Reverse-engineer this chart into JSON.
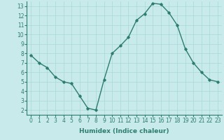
{
  "x_values": [
    0,
    1,
    2,
    3,
    4,
    5,
    6,
    7,
    8,
    9,
    10,
    11,
    12,
    13,
    14,
    15,
    16,
    17,
    18,
    19,
    20,
    21,
    22,
    23
  ],
  "y_values": [
    7.8,
    7.0,
    6.5,
    5.5,
    5.0,
    4.8,
    3.5,
    2.2,
    2.0,
    5.2,
    8.0,
    8.8,
    9.7,
    11.5,
    12.2,
    13.3,
    13.2,
    12.3,
    11.0,
    8.5,
    7.0,
    6.0,
    5.2,
    5.0
  ],
  "line_color": "#2d7d6e",
  "marker_style": "D",
  "marker_size": 1.8,
  "bg_color": "#c8eaea",
  "grid_color": "#a8d8d8",
  "xlabel": "Humidex (Indice chaleur)",
  "xlim": [
    -0.5,
    23.5
  ],
  "ylim": [
    1.5,
    13.5
  ],
  "yticks": [
    2,
    3,
    4,
    5,
    6,
    7,
    8,
    9,
    10,
    11,
    12,
    13
  ],
  "xticks": [
    0,
    1,
    2,
    3,
    4,
    5,
    6,
    7,
    8,
    9,
    10,
    11,
    12,
    13,
    14,
    15,
    16,
    17,
    18,
    19,
    20,
    21,
    22,
    23
  ],
  "tick_label_size": 5.5,
  "xlabel_size": 6.5,
  "line_width": 1.0
}
